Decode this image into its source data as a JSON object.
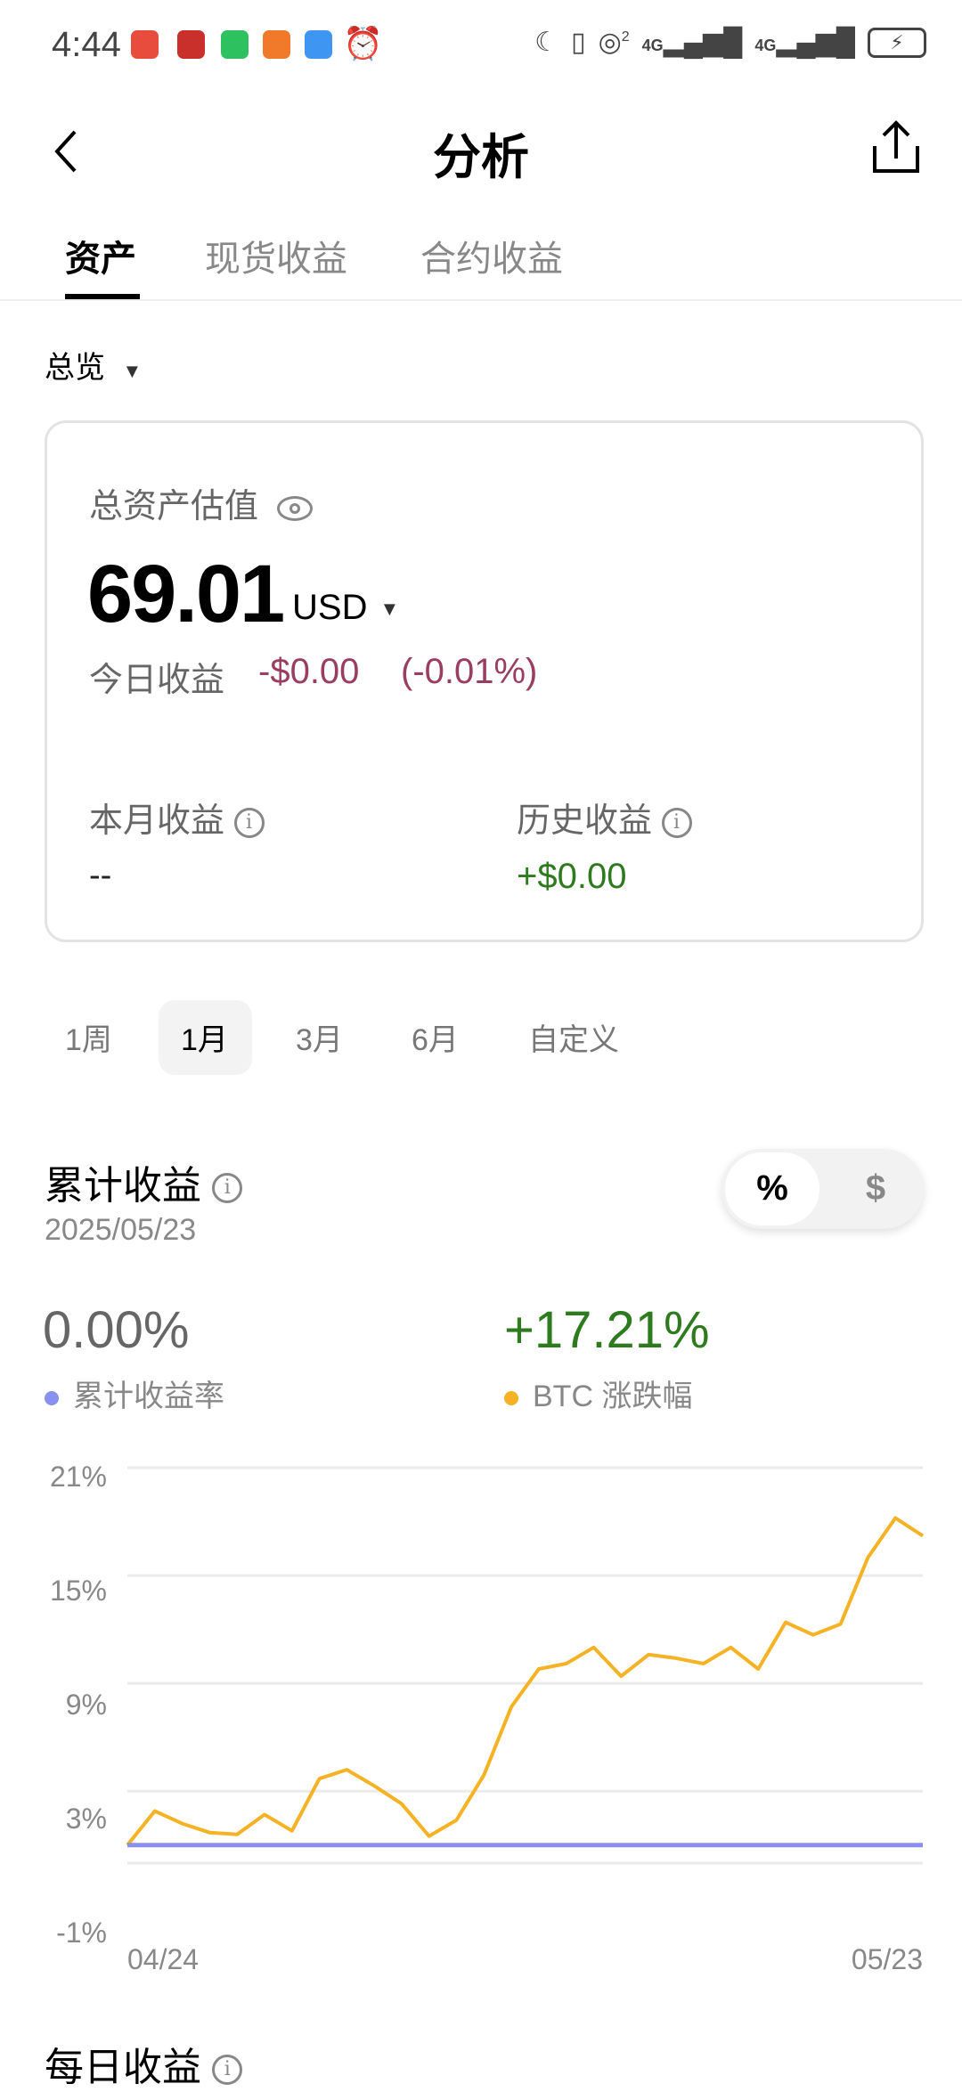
{
  "status_bar": {
    "time": "4:44",
    "app_icons": [
      "red-app-icon",
      "food-app-icon",
      "wechat-icon",
      "orange-app-icon",
      "weather-icon",
      "alarm-icon"
    ],
    "right_icons": [
      "moon-icon",
      "vibrate-icon",
      "hotspot-icon",
      "signal-4g-icon",
      "signal-4g-icon",
      "battery-charging-icon"
    ],
    "hotspot_sup": "2",
    "net1": "4G",
    "net2": "4G"
  },
  "header": {
    "title": "分析"
  },
  "tabs": [
    {
      "label": "资产"
    },
    {
      "label": "现货收益"
    },
    {
      "label": "合约收益"
    }
  ],
  "overview": {
    "label": "总览"
  },
  "card": {
    "total_label": "总资产估值",
    "total_value": "69.01",
    "currency": "USD",
    "today_label": "今日收益",
    "today_value": "-$0.00",
    "today_pct": "(-0.01%)",
    "month_label": "本月收益",
    "month_value": "--",
    "history_label": "历史收益",
    "history_value": "+$0.00"
  },
  "ranges": [
    {
      "label": "1周"
    },
    {
      "label": "1月"
    },
    {
      "label": "3月"
    },
    {
      "label": "6月"
    },
    {
      "label": "自定义"
    }
  ],
  "cumulative": {
    "title": "累计收益",
    "date": "2025/05/23",
    "toggle_pct": "%",
    "toggle_usd": "$",
    "rate_value": "0.00%",
    "rate_label": "累计收益率",
    "btc_value": "+17.21%",
    "btc_label": "BTC 涨跌幅"
  },
  "colors": {
    "rate": "#8a90ee",
    "btc": "#f5b225",
    "positive": "#2e7a1e",
    "negative": "#9a3d60"
  },
  "chart_data": {
    "type": "line",
    "ylim": [
      -1,
      21
    ],
    "y_ticks": [
      "21%",
      "15%",
      "9%",
      "3%",
      "-1%"
    ],
    "y_tick_values": [
      21,
      15,
      9,
      3,
      -1
    ],
    "x_tick_labels": [
      "04/24",
      "05/23"
    ],
    "grid": true,
    "series": [
      {
        "name": "累计收益率",
        "color": "#8a90ee",
        "values": [
          0,
          0,
          0,
          0,
          0,
          0,
          0,
          0,
          0,
          0,
          0,
          0,
          0,
          0,
          0,
          0,
          0,
          0,
          0,
          0,
          0,
          0,
          0,
          0,
          0,
          0,
          0,
          0,
          0,
          0
        ]
      },
      {
        "name": "BTC 涨跌幅",
        "color": "#f5b225",
        "values": [
          0,
          1.9,
          1.2,
          0.7,
          0.6,
          1.7,
          0.8,
          3.7,
          4.2,
          3.3,
          2.3,
          0.5,
          1.4,
          3.9,
          7.7,
          9.8,
          10.1,
          11.0,
          9.4,
          10.6,
          10.4,
          10.1,
          11.0,
          9.8,
          12.4,
          11.7,
          12.3,
          16.0,
          18.2,
          17.21
        ]
      }
    ]
  },
  "daily": {
    "title": "每日收益"
  }
}
